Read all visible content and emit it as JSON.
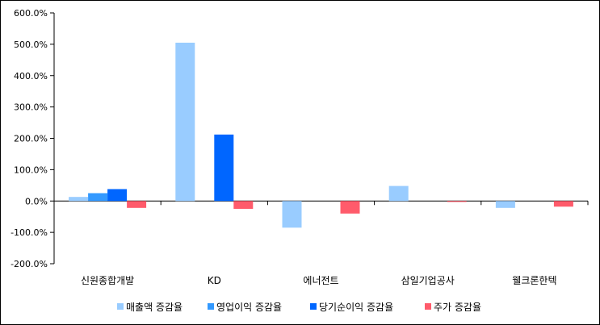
{
  "chart_data": {
    "type": "bar",
    "categories": [
      "신원종합개발",
      "KD",
      "에너전트",
      "삼일기업공사",
      "웰크론한텍"
    ],
    "series": [
      {
        "name": "매출액 증감율",
        "color": "#99ccff",
        "values": [
          13,
          505,
          -85,
          48,
          -22
        ]
      },
      {
        "name": "영업이익 증감율",
        "color": "#3399ff",
        "values": [
          25,
          null,
          null,
          null,
          null
        ]
      },
      {
        "name": "당기순이익 증감율",
        "color": "#0066ff",
        "values": [
          38,
          212,
          null,
          null,
          null
        ]
      },
      {
        "name": "주가 증감율",
        "color": "#ff5b6b",
        "values": [
          -22,
          -25,
          -40,
          -3,
          -18
        ]
      }
    ],
    "ylim": [
      -200,
      600
    ],
    "yticks": [
      -200,
      -100,
      0,
      100,
      200,
      300,
      400,
      500,
      600
    ],
    "ytick_labels": [
      "-200.0%",
      "-100.0%",
      "0.0%",
      "100.0%",
      "200.0%",
      "300.0%",
      "400.0%",
      "500.0%",
      "600.0%"
    ],
    "title": "",
    "xlabel": "",
    "ylabel": "",
    "legend": "bottom",
    "grid": false
  }
}
